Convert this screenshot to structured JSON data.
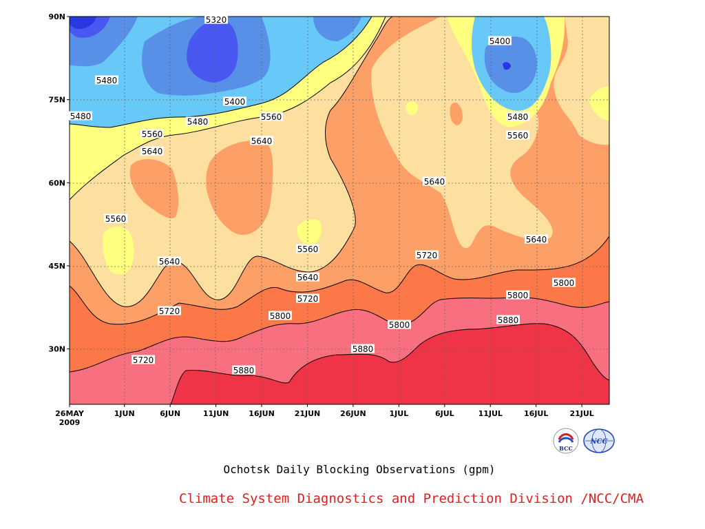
{
  "chart_data": {
    "type": "heatmap",
    "subtype": "filled-contour",
    "title": "Ochotsk Daily Blocking Observations (gpm)",
    "x_ticks": [
      "26MAY\n2009",
      "1JUN",
      "6JUN",
      "11JUN",
      "16JUN",
      "21JUN",
      "26JUN",
      "1JUL",
      "6JUL",
      "11JUL",
      "16JUL",
      "21JUL"
    ],
    "y_ticks": [
      "30N",
      "45N",
      "60N",
      "75N",
      "90N"
    ],
    "y_range": [
      20,
      90
    ],
    "x_range": [
      "2009-05-26",
      "2009-07-24"
    ],
    "grid": true,
    "contour_levels": [
      5320,
      5400,
      5480,
      5560,
      5640,
      5720,
      5800,
      5880
    ],
    "contour_labels": [
      "5320",
      "5480",
      "5400",
      "5480",
      "5560",
      "5480",
      "5400",
      "5560",
      "5640",
      "5640",
      "5480",
      "5560",
      "5560",
      "5640",
      "5560",
      "5640",
      "5640",
      "5640",
      "5720",
      "5720",
      "5720",
      "5800",
      "5720",
      "5800",
      "5800",
      "5800",
      "5880",
      "5880",
      "5880"
    ],
    "colors": {
      "lt5320": "#2838e0",
      "5320-5400": "#4858f0",
      "5400-5480": "#5890e8",
      "5480-5560": "#68c8f8",
      "5560-5640": "#ffff80",
      "5640-5720": "#fde0a0",
      "5720-5800": "#fca068",
      "5800-5880": "#fc7848",
      "5880-5960": "#f87080",
      "gt5960": "#f03448"
    }
  },
  "caption": "Ochotsk Daily Blocking Observations (gpm)",
  "credit": "Climate System Diagnostics and Prediction Division /NCC/CMA",
  "logos": [
    "BCC",
    "NCC"
  ]
}
